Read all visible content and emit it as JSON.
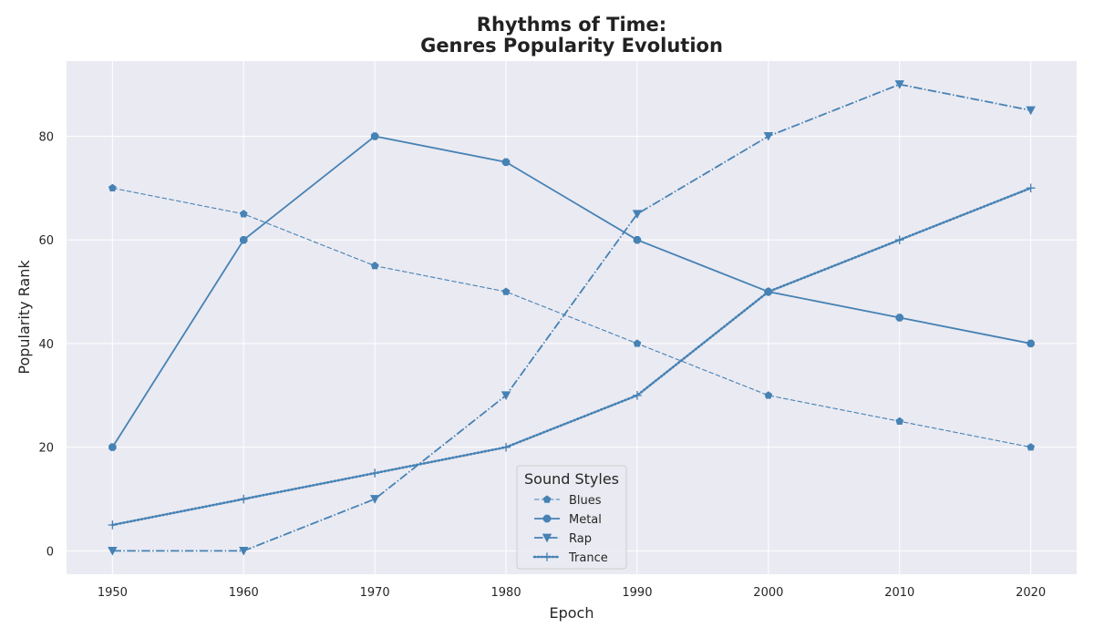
{
  "chart_data": {
    "type": "line",
    "title_line1": "Rhythms of Time:",
    "title_line2": "Genres Popularity Evolution",
    "xlabel": "Epoch",
    "ylabel": "Popularity Rank",
    "x": [
      1950,
      1960,
      1970,
      1980,
      1990,
      2000,
      2010,
      2020
    ],
    "x_tick_labels": [
      "1950",
      "1960",
      "1970",
      "1980",
      "1990",
      "2000",
      "2010",
      "2020"
    ],
    "y_ticks": [
      0,
      20,
      40,
      60,
      80
    ],
    "y_tick_labels": [
      "0",
      "20",
      "40",
      "60",
      "80"
    ],
    "xlim": [
      1946.5,
      2023.5
    ],
    "ylim": [
      -4.5,
      94.5
    ],
    "grid": true,
    "legend": {
      "title": "Sound Styles",
      "placement": "lower-center"
    },
    "series": [
      {
        "name": "Blues",
        "values": [
          70,
          65,
          55,
          50,
          40,
          30,
          25,
          20
        ],
        "linestyle": "dashed",
        "marker": "pentagon",
        "color": "#4682b4"
      },
      {
        "name": "Metal",
        "values": [
          20,
          60,
          80,
          75,
          60,
          50,
          45,
          40
        ],
        "linestyle": "solid",
        "marker": "octagon",
        "color": "#4682b4"
      },
      {
        "name": "Rap",
        "values": [
          0,
          0,
          10,
          30,
          65,
          80,
          90,
          85
        ],
        "linestyle": "dashdot",
        "marker": "triangle-down",
        "color": "#4682b4"
      },
      {
        "name": "Trance",
        "values": [
          5,
          10,
          15,
          20,
          30,
          50,
          60,
          70
        ],
        "linestyle": "dotted",
        "marker": "plus",
        "color": "#4682b4"
      }
    ],
    "colors": {
      "plot_background": "#eaeaf2",
      "grid": "#ffffff"
    }
  }
}
